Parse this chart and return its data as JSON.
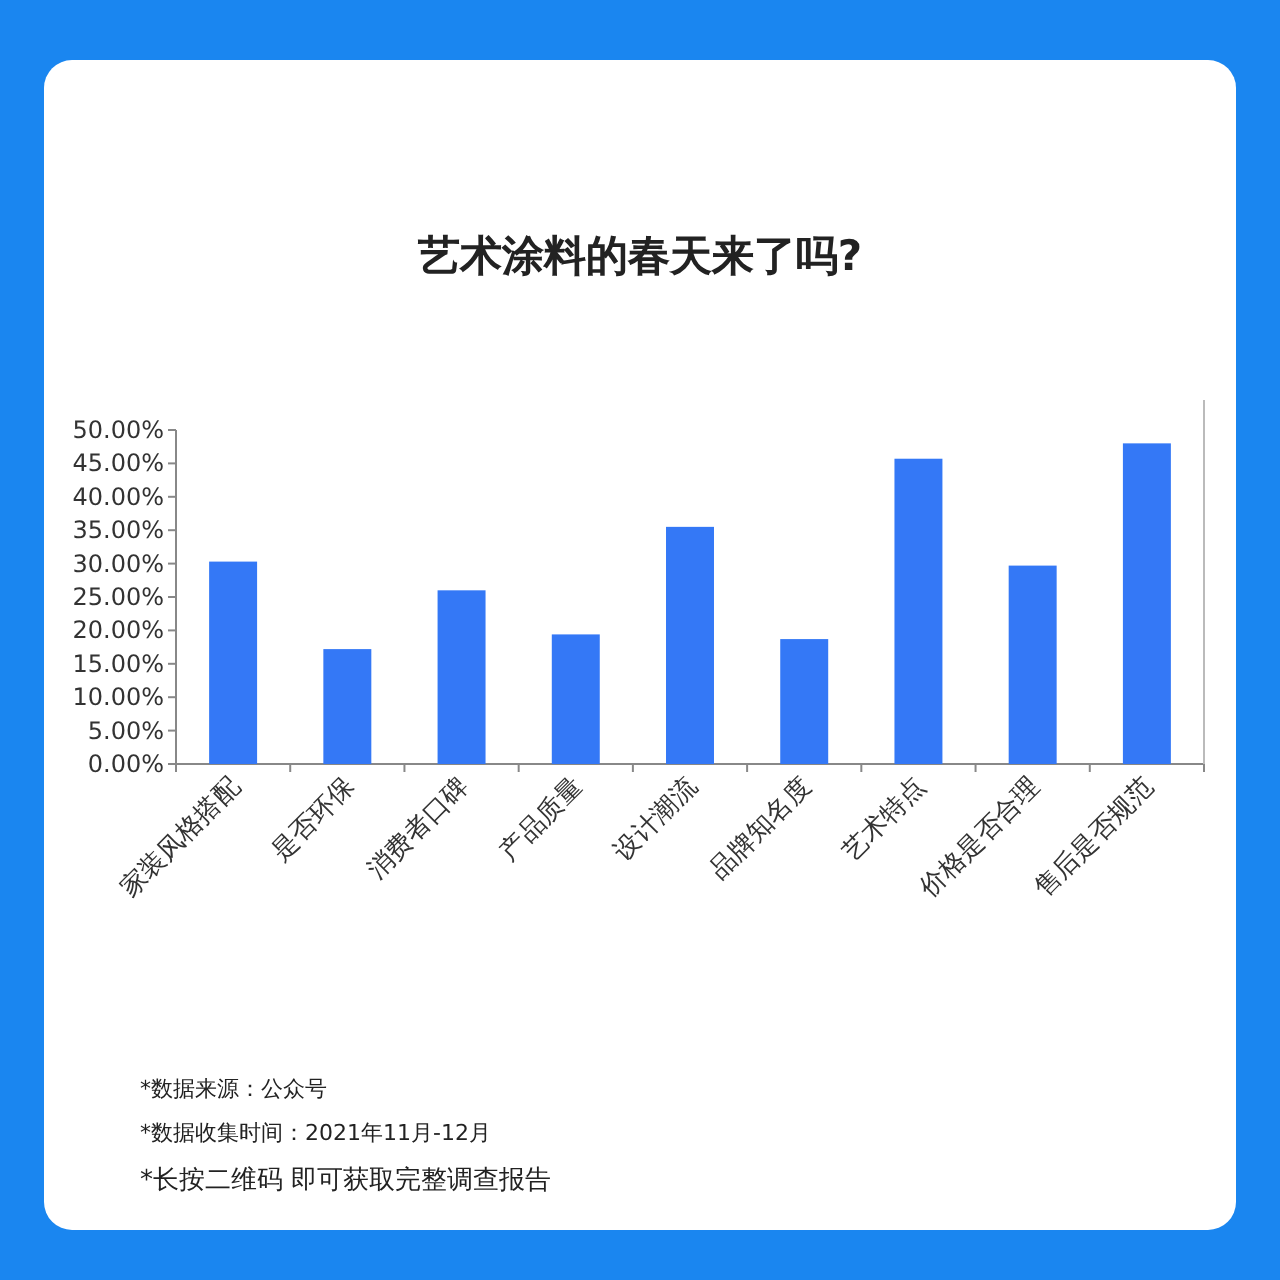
{
  "chart_data": {
    "type": "bar",
    "title": "艺术涂料的春天来了吗?",
    "categories": [
      "家装风格搭配",
      "是否环保",
      "消费者口碑",
      "产品质量",
      "设计潮流",
      "品牌知名度",
      "艺术特点",
      "价格是否合理",
      "售后是否规范"
    ],
    "values": [
      30.3,
      17.2,
      26,
      19.4,
      35.5,
      18.7,
      45.7,
      29.7,
      48
    ],
    "color": "#3478f6",
    "ylim": [
      0,
      50
    ],
    "yticks": [
      {
        "value": 0,
        "label": "0.00%"
      },
      {
        "value": 5,
        "label": "5.00%"
      },
      {
        "value": 10,
        "label": "10.00%"
      },
      {
        "value": 15,
        "label": "15.00%"
      },
      {
        "value": 20,
        "label": "20.00%"
      },
      {
        "value": 25,
        "label": "25.00%"
      },
      {
        "value": 30,
        "label": "30.00%"
      },
      {
        "value": 35,
        "label": "35.00%"
      },
      {
        "value": 40,
        "label": "40.00%"
      },
      {
        "value": 45,
        "label": "45.00%"
      },
      {
        "value": 50,
        "label": "50.00%"
      }
    ],
    "annotations": [
      "*数据来源：公众号",
      "*数据收集时间：2021年11月-12月",
      "*长按二维码 即可获取完整调查报告"
    ]
  }
}
